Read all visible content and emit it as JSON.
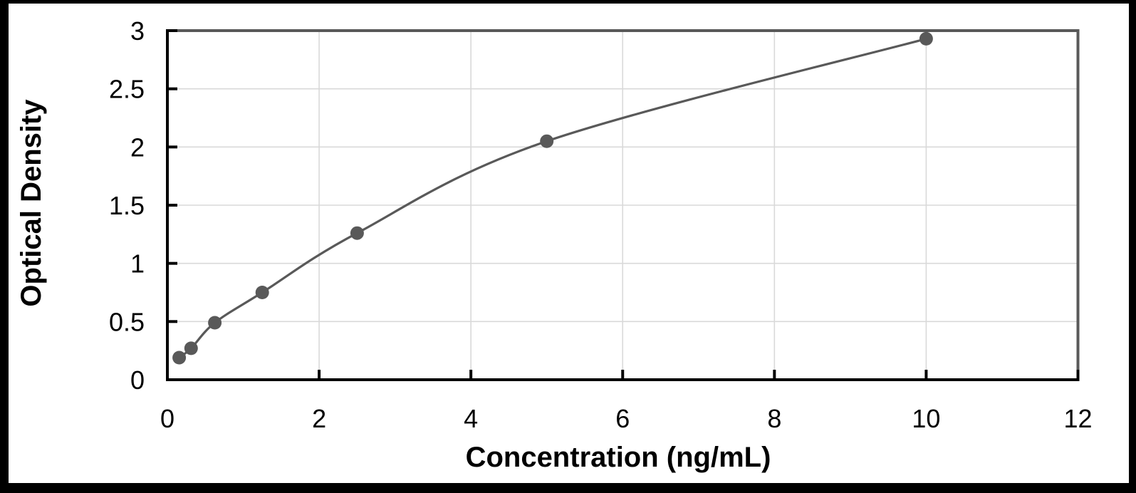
{
  "figure": {
    "background": "#ffffff",
    "frame_color": "#000000"
  },
  "chart_data": {
    "type": "scatter",
    "title": "",
    "xlabel": "Concentration (ng/mL)",
    "ylabel": "Optical Density",
    "x": [
      0.156,
      0.313,
      0.625,
      1.25,
      2.5,
      5,
      10
    ],
    "y": [
      0.19,
      0.27,
      0.49,
      0.75,
      1.26,
      2.05,
      2.93
    ],
    "xlim": [
      0,
      12
    ],
    "ylim": [
      0,
      3
    ],
    "x_ticks": {
      "values": [
        0,
        2,
        4,
        6,
        8,
        10,
        12
      ],
      "labels": [
        "0",
        "2",
        "4",
        "6",
        "8",
        "10",
        "12"
      ]
    },
    "y_ticks": {
      "values": [
        0,
        0.5,
        1,
        1.5,
        2,
        2.5,
        3
      ],
      "labels": [
        "0",
        "0.5",
        "1",
        "1.5",
        "2",
        "2.5",
        "3"
      ]
    },
    "grid": true,
    "legend": false,
    "line_smooth": true,
    "marker": "circle",
    "colors": {
      "line": "#595959",
      "marker": "#595959",
      "grid": "#d9d9d9",
      "axis": "#000000",
      "plot_border": "#595959",
      "text": "#000000"
    }
  }
}
